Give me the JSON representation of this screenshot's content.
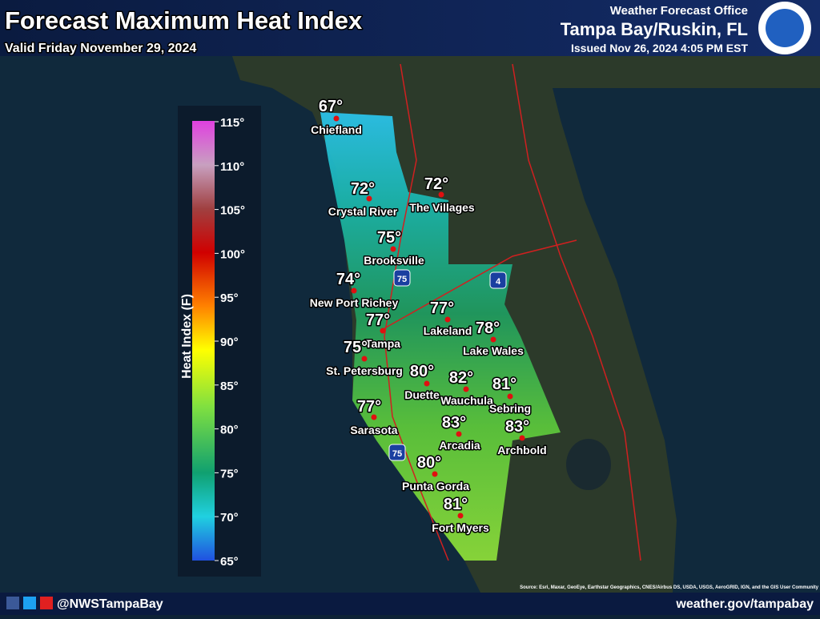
{
  "header": {
    "title": "Forecast Maximum Heat Index",
    "valid": "Valid Friday November 29, 2024",
    "office": "Weather Forecast Office",
    "location": "Tampa Bay/Ruskin, FL",
    "issued": "Issued Nov 26, 2024 4:05 PM EST"
  },
  "legend": {
    "label": "Heat Index (F)",
    "ticks": [
      "115°",
      "110°",
      "105°",
      "100°",
      "95°",
      "90°",
      "85°",
      "80°",
      "75°",
      "70°",
      "65°"
    ]
  },
  "cities": [
    {
      "name": "Chiefland",
      "temp": "67°"
    },
    {
      "name": "Crystal River",
      "temp": "72°"
    },
    {
      "name": "The Villages",
      "temp": "72°"
    },
    {
      "name": "Brooksville",
      "temp": "75°"
    },
    {
      "name": "New Port Richey",
      "temp": "74°"
    },
    {
      "name": "Tampa",
      "temp": "77°"
    },
    {
      "name": "Lakeland",
      "temp": "77°"
    },
    {
      "name": "Lake Wales",
      "temp": "78°"
    },
    {
      "name": "St. Petersburg",
      "temp": "75°"
    },
    {
      "name": "Duette",
      "temp": "80°"
    },
    {
      "name": "Wauchula",
      "temp": "82°"
    },
    {
      "name": "Sebring",
      "temp": "81°"
    },
    {
      "name": "Sarasota",
      "temp": "77°"
    },
    {
      "name": "Arcadia",
      "temp": "83°"
    },
    {
      "name": "Archbold",
      "temp": "83°"
    },
    {
      "name": "Punta Gorda",
      "temp": "80°"
    },
    {
      "name": "Fort Myers",
      "temp": "81°"
    }
  ],
  "shields": [
    "75",
    "4",
    "75"
  ],
  "footer": {
    "social": "@NWSTampaBay",
    "website": "weather.gov/tampabay",
    "attribution": "Source: Esri, Maxar, GeoEye, Earthstar Geographics, CNES/Airbus DS, USDA, USGS, AeroGRID, IGN, and the GIS User Community"
  }
}
